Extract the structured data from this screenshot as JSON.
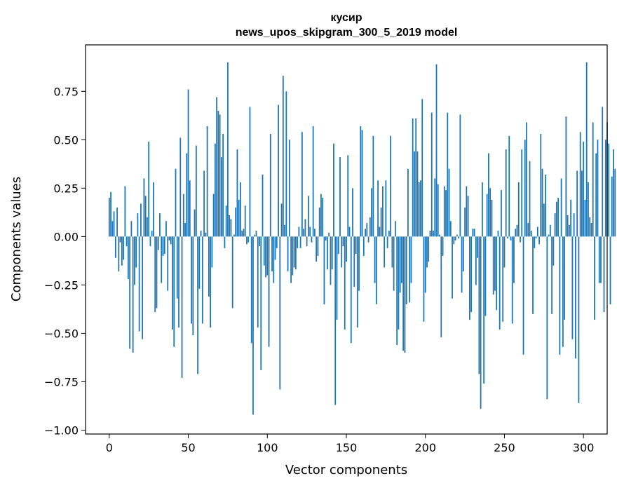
{
  "chart_data": {
    "type": "bar",
    "title_line1": "кусир",
    "title_line2": "news_upos_skipgram_300_5_2019 model",
    "xlabel": "Vector components",
    "ylabel": "Components values",
    "xlim": [
      -15,
      315
    ],
    "ylim": [
      -1.02,
      0.99
    ],
    "xticks": [
      0,
      50,
      100,
      150,
      200,
      250,
      300
    ],
    "yticks": [
      -1.0,
      -0.75,
      -0.5,
      -0.25,
      0.0,
      0.25,
      0.5,
      0.75
    ],
    "ytick_labels": [
      "−1.00",
      "−0.75",
      "−0.50",
      "−0.25",
      "0.00",
      "0.25",
      "0.50",
      "0.75"
    ],
    "bar_color": "#1f77b4",
    "values": [
      0.2,
      0.23,
      0.08,
      0.13,
      -0.11,
      0.15,
      -0.18,
      -0.03,
      -0.15,
      -0.12,
      0.26,
      -0.05,
      -0.22,
      -0.58,
      0.08,
      -0.6,
      -0.25,
      -0.16,
      0.12,
      -0.49,
      0.17,
      -0.53,
      0.3,
      0.21,
      0.1,
      0.49,
      -0.05,
      0.03,
      0.28,
      -0.39,
      -0.37,
      -0.07,
      0.12,
      -0.24,
      -0.1,
      -0.09,
      0.08,
      -0.28,
      -0.02,
      -0.04,
      -0.48,
      -0.57,
      0.35,
      -0.32,
      -0.47,
      0.51,
      -0.73,
      0.22,
      0.07,
      0.43,
      0.76,
      0.29,
      -0.45,
      -0.51,
      0.14,
      0.47,
      -0.71,
      -0.27,
      0.03,
      -0.45,
      0.34,
      0.02,
      0.57,
      -0.31,
      -0.47,
      -0.16,
      0.22,
      0.48,
      0.72,
      0.65,
      0.63,
      0.41,
      0.53,
      -0.06,
      0.16,
      0.9,
      0.11,
      0.09,
      -0.37,
      0.01,
      0.15,
      0.45,
      0.19,
      0.28,
      0.03,
      0.04,
      0.16,
      -0.04,
      -0.03,
      0.67,
      -0.55,
      -0.92,
      0.01,
      0.03,
      -0.47,
      -0.05,
      -0.69,
      0.32,
      -0.15,
      -0.21,
      -0.2,
      -0.57,
      0.53,
      -0.18,
      -0.24,
      -0.12,
      -0.06,
      0.68,
      -0.79,
      0.17,
      0.83,
      0.06,
      0.75,
      -0.18,
      0.5,
      -0.24,
      -0.2,
      -0.16,
      -0.17,
      -0.06,
      0.05,
      -0.06,
      0.54,
      0.04,
      0.09,
      -0.05,
      0.21,
      0.05,
      -0.03,
      0.57,
      0.04,
      -0.13,
      -0.1,
      0.15,
      0.22,
      0.2,
      -0.35,
      -0.02,
      -0.17,
      0.02,
      -0.25,
      -0.17,
      0.48,
      -0.87,
      -0.43,
      -0.09,
      0.41,
      -0.16,
      -0.05,
      -0.48,
      -0.13,
      0.42,
      0.05,
      -0.55,
      0.25,
      -0.26,
      -0.09,
      -0.47,
      -0.28,
      0.57,
      0.55,
      -0.1,
      0.04,
      0.07,
      -0.03,
      0.1,
      0.25,
      0.52,
      -0.24,
      -0.35,
      0.29,
      0.05,
      0.15,
      0.26,
      -0.16,
      0.29,
      -0.06,
      0.03,
      0.52,
      -0.16,
      -0.28,
      0.08,
      -0.56,
      -0.48,
      -0.29,
      -0.24,
      -0.59,
      -0.6,
      -0.35,
      0.35,
      -0.34,
      -0.24,
      0.61,
      0.44,
      0.61,
      0.44,
      0.28,
      0.29,
      0.71,
      -0.44,
      -0.29,
      -0.16,
      -0.13,
      0.03,
      0.64,
      0.03,
      0.3,
      0.89,
      0.27,
      0.01,
      -0.52,
      -0.1,
      0.26,
      0.24,
      0.64,
      0.35,
      0.08,
      -0.32,
      -0.04,
      -0.02,
      0.01,
      -0.01,
      0.63,
      -0.29,
      -0.18,
      0.15,
      0.26,
      0.21,
      -0.43,
      -0.39,
      0.04,
      0.04,
      -0.25,
      -0.11,
      -0.71,
      -0.89,
      0.28,
      -0.76,
      -0.41,
      0.22,
      0.43,
      0.25,
      0.19,
      -0.3,
      -0.28,
      -0.38,
      0.03,
      -0.48,
      0.24,
      -0.44,
      -0.16,
      0.45,
      -0.01,
      0.52,
      -0.02,
      -0.45,
      -0.24,
      0.04,
      0.06,
      0.28,
      -0.03,
      0.45,
      -0.61,
      0.5,
      0.59,
      0.07,
      0.39,
      0.03,
      -0.4,
      -0.06,
      -0.01,
      0.05,
      -0.04,
      0.53,
      0.35,
      0.17,
      0.32,
      -0.84,
      0.01,
      0.06,
      -0.4,
      -0.15,
      0.12,
      0.18,
      0.2,
      -0.61,
      0.3,
      -0.57,
      -0.43,
      0.62,
      0.11,
      0.06,
      0.19,
      -0.53,
      0.12,
      -0.63,
      0.34,
      -0.86,
      0.54,
      0.34,
      0.49,
      0.19,
      0.9,
      0.28,
      0.1,
      0.07,
      0.59,
      -0.43,
      0.43,
      0.5,
      -0.24,
      -0.24,
      0.67,
      -0.39,
      0.5,
      0.59,
      0.48,
      -0.35,
      0.31,
      0.45,
      0.35
    ]
  }
}
